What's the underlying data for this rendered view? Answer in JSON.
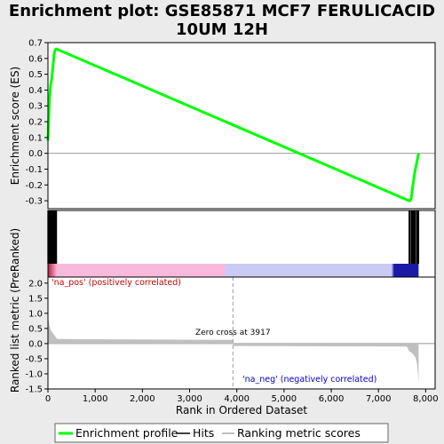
{
  "title_line1": "Enrichment plot: GSE85871 MCF7 FERULICACID",
  "title_line2": "10UM 12H",
  "chart_data": {
    "type": "line",
    "xlabel": "Rank in Ordered Dataset",
    "xlim": [
      0,
      8200
    ],
    "xticks": [
      0,
      1000,
      2000,
      3000,
      4000,
      5000,
      6000,
      7000,
      8000
    ],
    "xtick_labels": [
      "0",
      "1,000",
      "2,000",
      "3,000",
      "4,000",
      "5,000",
      "6,000",
      "7,000",
      "8,000"
    ],
    "es_panel": {
      "ylabel": "Enrichment score (ES)",
      "ylim": [
        -0.35,
        0.7
      ],
      "yticks": [
        -0.3,
        -0.2,
        -0.1,
        0.0,
        0.1,
        0.2,
        0.3,
        0.4,
        0.5,
        0.6,
        0.7
      ],
      "ytick_labels": [
        "-0.3",
        "-0.2",
        "-0.1",
        "0.0",
        "0.1",
        "0.2",
        "0.3",
        "0.4",
        "0.5",
        "0.6",
        "0.7"
      ],
      "series": [
        {
          "name": "Enrichment profile",
          "color": "#00ff00",
          "x": [
            0,
            10,
            20,
            30,
            40,
            50,
            60,
            70,
            80,
            90,
            100,
            110,
            120,
            130,
            140,
            150,
            160,
            170,
            180,
            7650,
            7670,
            7690,
            7710,
            7730,
            7750,
            7770,
            7790,
            7810,
            7830,
            7850
          ],
          "y": [
            0.08,
            0.17,
            0.25,
            0.32,
            0.37,
            0.41,
            0.44,
            0.45,
            0.47,
            0.5,
            0.53,
            0.56,
            0.59,
            0.62,
            0.64,
            0.65,
            0.655,
            0.66,
            0.66,
            -0.3,
            -0.3,
            -0.29,
            -0.25,
            -0.2,
            -0.16,
            -0.12,
            -0.09,
            -0.06,
            -0.03,
            0.0
          ]
        }
      ]
    },
    "hits": [
      0,
      10,
      20,
      30,
      40,
      50,
      60,
      70,
      80,
      90,
      100,
      110,
      120,
      130,
      140,
      150,
      160,
      170,
      180,
      7650,
      7670,
      7700,
      7720,
      7740,
      7760,
      7780,
      7810,
      7830,
      7850
    ],
    "metric_panel": {
      "ylabel": "Ranked list metric (PreRanked)",
      "ylim": [
        -1.5,
        2.2
      ],
      "yticks": [
        -1.5,
        -1.0,
        -0.5,
        0.0,
        0.5,
        1.0,
        1.5,
        2.0
      ],
      "ytick_labels": [
        "-1.5",
        "-1.0",
        "-0.5",
        "0.0",
        "0.5",
        "1.0",
        "1.5",
        "2.0"
      ],
      "profile_x": [
        0,
        10,
        30,
        60,
        100,
        150,
        180,
        200,
        3917,
        3918,
        7600,
        7650,
        7700,
        7750,
        7780,
        7800,
        7820,
        7830,
        7840,
        7850
      ],
      "profile_y": [
        2.0,
        0.8,
        0.6,
        0.45,
        0.35,
        0.25,
        0.17,
        0.15,
        0.12,
        -0.08,
        -0.1,
        -0.25,
        -0.3,
        -0.38,
        -0.45,
        -0.55,
        -0.7,
        -0.9,
        -1.1,
        -1.35
      ],
      "zero_cross_x": 3917,
      "zero_cross_label": "Zero cross at 3917",
      "pos_label": "'na_pos' (positively correlated)",
      "neg_label": "'na_neg' (negatively correlated)"
    },
    "legend": {
      "placement": "bottom",
      "items": [
        "Enrichment profile",
        "Hits",
        "Ranking metric scores"
      ]
    },
    "colors": {
      "profile": "#00ff00",
      "hits": "#000000",
      "metric_fill": "#c0c0c0",
      "pos_text": "#cc0000",
      "neg_text": "#0000cc",
      "bar_pos_light": "#f9b9dd",
      "bar_pos_dark": "#b81e3a",
      "bar_neg_light": "#c9cbf5",
      "bar_neg_dark": "#1a1aa6"
    }
  }
}
